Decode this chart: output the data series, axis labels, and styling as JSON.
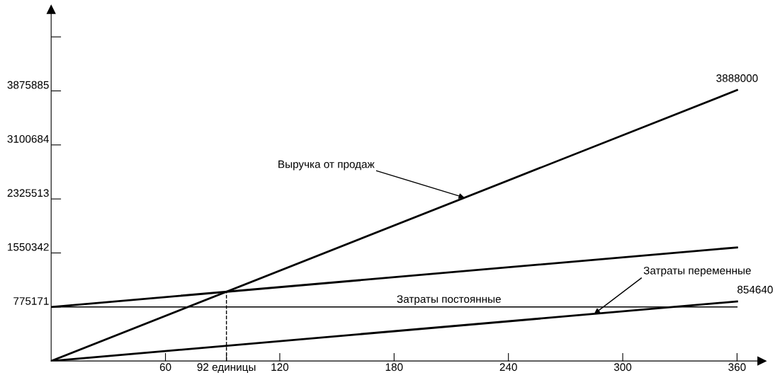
{
  "chart_data": {
    "type": "line",
    "x": [
      0,
      360
    ],
    "xlim": [
      0,
      373
    ],
    "ylim": [
      0,
      5044000
    ],
    "xticks": [
      60,
      {
        "value": 92,
        "label": "92 единицы"
      },
      120,
      180,
      240,
      300,
      360
    ],
    "yticks": [
      775171,
      1550342,
      2325513,
      3100684,
      3875885,
      {
        "value": 4651000,
        "label": null
      }
    ],
    "grid": false,
    "legend": false,
    "marker": "none",
    "line_style": "solid",
    "series": [
      {
        "color": "#000000",
        "values": [
          0,
          3888000
        ],
        "value_labels": [
          null,
          "3888000"
        ]
      },
      {
        "color": "#000000",
        "values": [
          775171,
          1630000
        ]
      },
      {
        "color": "#000000",
        "values": [
          0,
          854640
        ],
        "value_labels": [
          null,
          "854640"
        ]
      }
    ],
    "ref_lines": [
      {
        "axis": "y",
        "value": 775171,
        "label": "Затраты постоянные",
        "color": "#000000",
        "line_style": "solid"
      },
      {
        "axis": "x",
        "value": 92,
        "label": null,
        "color": "#000000",
        "line_style": "dashed"
      }
    ],
    "annotations": [
      {
        "text": "Выручка от продаж",
        "x": 217,
        "y": 2343600
      },
      {
        "text": "Затраты переменные",
        "x": 285,
        "y": 676590
      }
    ]
  }
}
